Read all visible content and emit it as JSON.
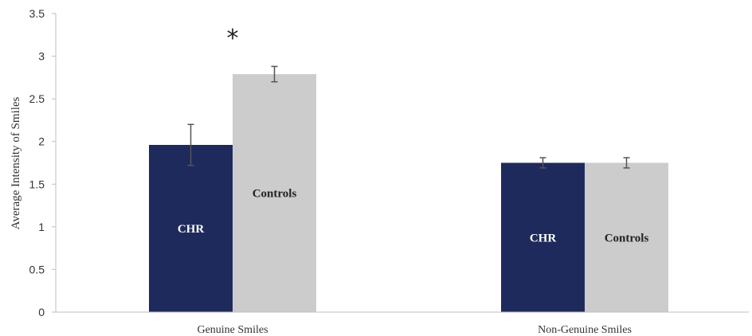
{
  "chart_data": {
    "type": "bar",
    "categories": [
      "Genuine Smiles",
      "Non-Genuine Smiles"
    ],
    "series": [
      {
        "name": "CHR",
        "values": [
          1.96,
          1.75
        ],
        "errors": [
          0.24,
          0.06
        ],
        "color": "#1f2a5c",
        "label_color": "#ffffff"
      },
      {
        "name": "Controls",
        "values": [
          2.79,
          1.75
        ],
        "errors": [
          0.09,
          0.06
        ],
        "color": "#cccccc",
        "label_color": "#222222"
      }
    ],
    "ylabel": "Average Intensity of Smiles",
    "ylim": [
      0,
      3.5
    ],
    "yticks": [
      0,
      0.5,
      1,
      1.5,
      2,
      2.5,
      3,
      3.5
    ],
    "ytick_labels": [
      "0",
      "0.5",
      "1",
      "1.5",
      "2",
      "2.5",
      "3",
      "3.5"
    ],
    "grid": false,
    "legend": "none",
    "annotations": [
      {
        "text": "*",
        "category": "Genuine Smiles",
        "series": "Controls"
      }
    ]
  }
}
